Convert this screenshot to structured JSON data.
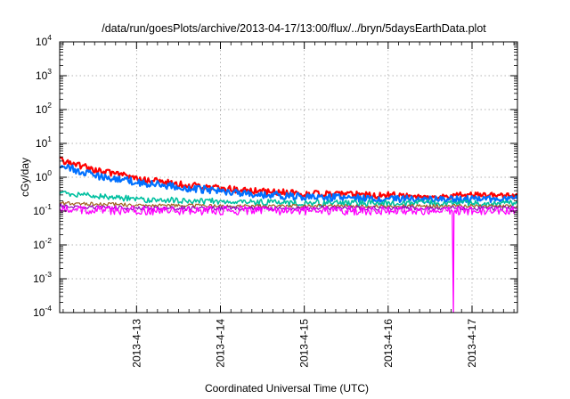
{
  "chart_data": {
    "type": "line",
    "title": "/data/run/goesPlots/archive/2013-04-17/13:00/flux/../bryn/5daysEarthData.plot",
    "xlabel": "Coordinated Universal Time (UTC)",
    "ylabel": "cGy/day",
    "yscale": "log",
    "ylim": [
      0.0001,
      10000
    ],
    "xlim": [
      "2013-04-12 02:00",
      "2013-04-17 13:00"
    ],
    "grid": true,
    "legend": "none",
    "y_ticks": [
      {
        "value": 0.0001,
        "base": "10",
        "exp": "-4"
      },
      {
        "value": 0.001,
        "base": "10",
        "exp": "-3"
      },
      {
        "value": 0.01,
        "base": "10",
        "exp": "-2"
      },
      {
        "value": 0.1,
        "base": "10",
        "exp": "-1"
      },
      {
        "value": 1,
        "base": "10",
        "exp": "0"
      },
      {
        "value": 10,
        "base": "10",
        "exp": "1"
      },
      {
        "value": 100,
        "base": "10",
        "exp": "2"
      },
      {
        "value": 1000,
        "base": "10",
        "exp": "3"
      },
      {
        "value": 10000,
        "base": "10",
        "exp": "4"
      }
    ],
    "x_ticks": [
      {
        "value": "2013-04-13 00:00",
        "label": "2013-4-13"
      },
      {
        "value": "2013-04-14 00:00",
        "label": "2013-4-14"
      },
      {
        "value": "2013-04-15 00:00",
        "label": "2013-4-15"
      },
      {
        "value": "2013-04-16 00:00",
        "label": "2013-4-16"
      },
      {
        "value": "2013-04-17 00:00",
        "label": "2013-4-17"
      }
    ],
    "series": [
      {
        "color": "#ff0000",
        "x": [
          "2013-04-12 02:00",
          "2013-04-12 12:00",
          "2013-04-13 00:00",
          "2013-04-13 12:00",
          "2013-04-14 00:00",
          "2013-04-14 12:00",
          "2013-04-15 00:00",
          "2013-04-15 12:00",
          "2013-04-16 00:00",
          "2013-04-16 12:00",
          "2013-04-17 00:00",
          "2013-04-17 13:00"
        ],
        "y": [
          3.2,
          1.6,
          0.9,
          0.6,
          0.45,
          0.38,
          0.32,
          0.3,
          0.29,
          0.28,
          0.28,
          0.28
        ]
      },
      {
        "color": "#0070ff",
        "x": [
          "2013-04-12 02:00",
          "2013-04-12 12:00",
          "2013-04-13 00:00",
          "2013-04-13 12:00",
          "2013-04-14 00:00",
          "2013-04-14 12:00",
          "2013-04-15 00:00",
          "2013-04-15 12:00",
          "2013-04-16 00:00",
          "2013-04-16 12:00",
          "2013-04-17 00:00",
          "2013-04-17 13:00"
        ],
        "y": [
          2.2,
          1.1,
          0.7,
          0.5,
          0.38,
          0.3,
          0.26,
          0.24,
          0.23,
          0.22,
          0.22,
          0.22
        ]
      },
      {
        "color": "#00c0a0",
        "x": [
          "2013-04-12 02:00",
          "2013-04-12 12:00",
          "2013-04-13 00:00",
          "2013-04-13 12:00",
          "2013-04-14 00:00",
          "2013-04-14 12:00",
          "2013-04-15 00:00",
          "2013-04-15 12:00",
          "2013-04-16 00:00",
          "2013-04-16 12:00",
          "2013-04-17 00:00",
          "2013-04-17 13:00"
        ],
        "y": [
          0.35,
          0.27,
          0.22,
          0.2,
          0.19,
          0.18,
          0.17,
          0.17,
          0.17,
          0.17,
          0.17,
          0.17
        ]
      },
      {
        "color": "#a06020",
        "x": [
          "2013-04-12 02:00",
          "2013-04-13 00:00",
          "2013-04-14 00:00",
          "2013-04-15 00:00",
          "2013-04-16 00:00",
          "2013-04-17 00:00",
          "2013-04-17 13:00"
        ],
        "y": [
          0.17,
          0.15,
          0.14,
          0.14,
          0.14,
          0.14,
          0.14
        ]
      },
      {
        "color": "#9000c0",
        "x": [
          "2013-04-12 02:00",
          "2013-04-13 00:00",
          "2013-04-14 00:00",
          "2013-04-15 00:00",
          "2013-04-16 00:00",
          "2013-04-17 00:00",
          "2013-04-17 13:00"
        ],
        "y": [
          0.14,
          0.12,
          0.12,
          0.12,
          0.12,
          0.12,
          0.12
        ]
      },
      {
        "color": "#ff00ff",
        "x": [
          "2013-04-12 02:00",
          "2013-04-13 00:00",
          "2013-04-14 00:00",
          "2013-04-15 00:00",
          "2013-04-16 00:00",
          "2013-04-16 18:20",
          "2013-04-16 18:40",
          "2013-04-16 18:50",
          "2013-04-17 00:00",
          "2013-04-17 13:00"
        ],
        "y": [
          0.11,
          0.1,
          0.1,
          0.1,
          0.1,
          0.1,
          0.0001,
          0.1,
          0.1,
          0.1
        ]
      }
    ]
  }
}
